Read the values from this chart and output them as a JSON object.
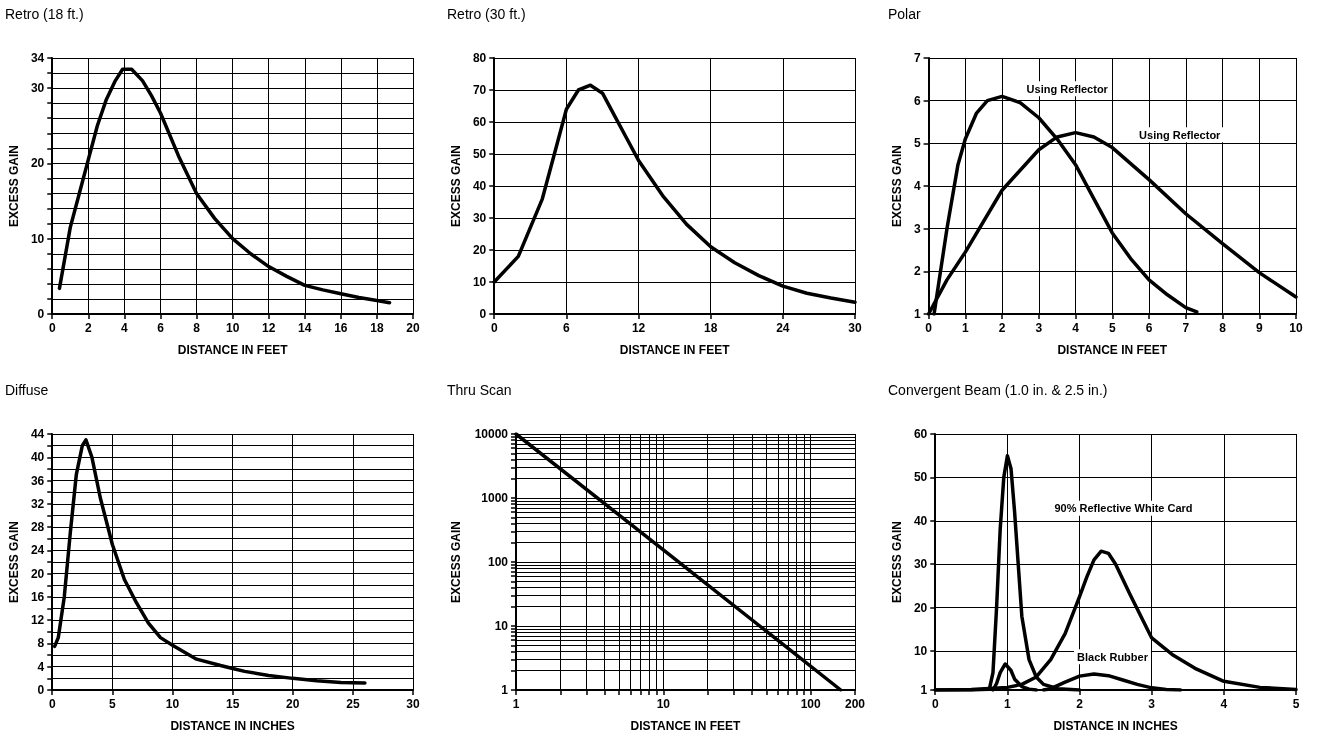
{
  "chart_data": [
    {
      "type": "line",
      "title": "Retro (18 ft.)",
      "xlabel": "DISTANCE IN FEET",
      "ylabel": "EXCESS GAIN",
      "grid": true,
      "marker": "none",
      "line_style": "solid",
      "xlim": [
        0,
        20
      ],
      "xticks": [
        0,
        2,
        4,
        6,
        8,
        10,
        12,
        14,
        16,
        18,
        20
      ],
      "ylim": [
        0,
        34
      ],
      "yticks": [
        0,
        {
          "value": 2,
          "label": null
        },
        {
          "value": 4,
          "label": null
        },
        {
          "value": 6,
          "label": null
        },
        {
          "value": 8,
          "label": null
        },
        10,
        {
          "value": 12,
          "label": null
        },
        {
          "value": 14,
          "label": null
        },
        {
          "value": 16,
          "label": null
        },
        {
          "value": 18,
          "label": null
        },
        20,
        {
          "value": 22,
          "label": null
        },
        {
          "value": 24,
          "label": null
        },
        {
          "value": 26,
          "label": null
        },
        {
          "value": 28,
          "label": null
        },
        30,
        {
          "value": 32,
          "label": null
        },
        34
      ],
      "series": [
        {
          "color": "#000000",
          "x": [
            0.4,
            1,
            1.5,
            2,
            2.5,
            3,
            3.5,
            3.9,
            4.4,
            5,
            5.5,
            6,
            7,
            8,
            9,
            10,
            11,
            12,
            13,
            14,
            15,
            16,
            17,
            18,
            18.7
          ],
          "values": [
            3.4,
            11.5,
            16,
            20.5,
            25,
            28.5,
            31,
            32.5,
            32.5,
            31,
            29,
            26.7,
            21,
            16,
            12.7,
            10,
            8,
            6.3,
            5,
            3.8,
            3.2,
            2.7,
            2.2,
            1.8,
            1.5
          ]
        }
      ]
    },
    {
      "type": "line",
      "title": "Retro (30 ft.)",
      "xlabel": "DISTANCE IN FEET",
      "ylabel": "EXCESS GAIN",
      "grid": true,
      "marker": "none",
      "line_style": "solid",
      "xlim": [
        0,
        30
      ],
      "xticks": [
        0,
        6,
        12,
        18,
        24,
        30
      ],
      "ylim": [
        0,
        80
      ],
      "yticks": [
        0,
        10,
        20,
        30,
        40,
        50,
        60,
        70,
        80
      ],
      "series": [
        {
          "color": "#000000",
          "x": [
            0,
            2,
            4,
            5,
            6,
            7,
            8,
            9,
            10,
            11,
            12,
            14,
            16,
            18,
            20,
            22,
            24,
            26,
            28,
            30
          ],
          "values": [
            10,
            18,
            36,
            50,
            64,
            70,
            71.5,
            69,
            62,
            55,
            48,
            37,
            28,
            21,
            16,
            12,
            8.7,
            6.5,
            5,
            3.7
          ]
        }
      ]
    },
    {
      "type": "line",
      "title": "Polar",
      "xlabel": "DISTANCE IN FEET",
      "ylabel": "EXCESS GAIN",
      "grid": true,
      "marker": "none",
      "line_style": "solid",
      "xlim": [
        0,
        10
      ],
      "xticks": [
        0,
        1,
        2,
        3,
        4,
        5,
        6,
        7,
        8,
        9,
        10
      ],
      "ylim": [
        1,
        7
      ],
      "yticks": [
        1,
        2,
        3,
        4,
        5,
        6,
        7
      ],
      "annotations": [
        "Using Reflector",
        "Using Reflector"
      ],
      "series": [
        {
          "color": "#000000",
          "x": [
            0.15,
            0.5,
            0.8,
            1,
            1.3,
            1.6,
            2,
            2.5,
            3,
            3.5,
            4,
            4.5,
            5,
            5.5,
            6,
            6.5,
            7,
            7.3
          ],
          "values": [
            1,
            3,
            4.5,
            5.1,
            5.7,
            6,
            6.1,
            5.95,
            5.6,
            5.1,
            4.5,
            3.7,
            2.9,
            2.3,
            1.8,
            1.45,
            1.15,
            1.05
          ]
        },
        {
          "color": "#000000",
          "x": [
            0,
            0.5,
            1,
            2,
            3,
            3.5,
            4,
            4.5,
            5,
            6,
            7,
            8,
            9,
            10
          ],
          "values": [
            1,
            1.8,
            2.45,
            3.9,
            4.85,
            5.15,
            5.25,
            5.15,
            4.9,
            4.15,
            3.35,
            2.65,
            1.97,
            1.4
          ]
        }
      ]
    },
    {
      "type": "line",
      "title": "Diffuse",
      "xlabel": "DISTANCE IN INCHES",
      "ylabel": "EXCESS GAIN",
      "grid": true,
      "marker": "none",
      "line_style": "solid",
      "xlim": [
        0,
        30
      ],
      "xticks": [
        0,
        5,
        10,
        15,
        20,
        25,
        30
      ],
      "ylim": [
        0,
        44
      ],
      "yticks": [
        0,
        {
          "value": 2,
          "label": null
        },
        4,
        {
          "value": 6,
          "label": null
        },
        8,
        {
          "value": 10,
          "label": null
        },
        12,
        {
          "value": 14,
          "label": null
        },
        16,
        {
          "value": 18,
          "label": null
        },
        20,
        {
          "value": 22,
          "label": null
        },
        24,
        {
          "value": 26,
          "label": null
        },
        28,
        {
          "value": 30,
          "label": null
        },
        32,
        {
          "value": 34,
          "label": null
        },
        36,
        {
          "value": 38,
          "label": null
        },
        40,
        {
          "value": 42,
          "label": null
        },
        44
      ],
      "series": [
        {
          "color": "#000000",
          "x": [
            0.2,
            0.5,
            1,
            1.5,
            2,
            2.5,
            2.8,
            3.3,
            4,
            5,
            6,
            7,
            8,
            9,
            10,
            12,
            14,
            15,
            16,
            18,
            20,
            22,
            24,
            26
          ],
          "values": [
            7.5,
            9,
            16,
            27,
            37,
            42,
            43,
            40,
            33,
            25,
            19,
            15,
            11.5,
            9,
            7.7,
            5.3,
            4.2,
            3.7,
            3.2,
            2.5,
            2,
            1.6,
            1.3,
            1.2
          ]
        }
      ]
    },
    {
      "type": "line",
      "title": "Thru Scan",
      "xlabel": "DISTANCE IN FEET",
      "ylabel": "EXCESS GAIN",
      "grid": true,
      "marker": "none",
      "line_style": "solid",
      "log": "xy",
      "xlim": [
        1,
        200
      ],
      "xticks": [
        1,
        {
          "value": 2,
          "label": null
        },
        {
          "value": 3,
          "label": null
        },
        {
          "value": 4,
          "label": null
        },
        {
          "value": 5,
          "label": null
        },
        {
          "value": 6,
          "label": null
        },
        {
          "value": 7,
          "label": null
        },
        {
          "value": 8,
          "label": null
        },
        {
          "value": 9,
          "label": null
        },
        10,
        {
          "value": 20,
          "label": null
        },
        {
          "value": 30,
          "label": null
        },
        {
          "value": 40,
          "label": null
        },
        {
          "value": 50,
          "label": null
        },
        {
          "value": 60,
          "label": null
        },
        {
          "value": 70,
          "label": null
        },
        {
          "value": 80,
          "label": null
        },
        {
          "value": 90,
          "label": null
        },
        100,
        200
      ],
      "ylim": [
        1,
        10000
      ],
      "yticks": [
        1,
        {
          "value": 2,
          "label": null
        },
        {
          "value": 3,
          "label": null
        },
        {
          "value": 4,
          "label": null
        },
        {
          "value": 5,
          "label": null
        },
        {
          "value": 6,
          "label": null
        },
        {
          "value": 7,
          "label": null
        },
        {
          "value": 8,
          "label": null
        },
        {
          "value": 9,
          "label": null
        },
        10,
        {
          "value": 20,
          "label": null
        },
        {
          "value": 30,
          "label": null
        },
        {
          "value": 40,
          "label": null
        },
        {
          "value": 50,
          "label": null
        },
        {
          "value": 60,
          "label": null
        },
        {
          "value": 70,
          "label": null
        },
        {
          "value": 80,
          "label": null
        },
        {
          "value": 90,
          "label": null
        },
        100,
        {
          "value": 200,
          "label": null
        },
        {
          "value": 300,
          "label": null
        },
        {
          "value": 400,
          "label": null
        },
        {
          "value": 500,
          "label": null
        },
        {
          "value": 600,
          "label": null
        },
        {
          "value": 700,
          "label": null
        },
        {
          "value": 800,
          "label": null
        },
        {
          "value": 900,
          "label": null
        },
        1000,
        {
          "value": 2000,
          "label": null
        },
        {
          "value": 3000,
          "label": null
        },
        {
          "value": 4000,
          "label": null
        },
        {
          "value": 5000,
          "label": null
        },
        {
          "value": 6000,
          "label": null
        },
        {
          "value": 7000,
          "label": null
        },
        {
          "value": 8000,
          "label": null
        },
        {
          "value": 9000,
          "label": null
        },
        10000
      ],
      "series": [
        {
          "color": "#000000",
          "x": [
            1,
            10,
            160
          ],
          "values": [
            10000,
            155,
            1
          ]
        }
      ]
    },
    {
      "type": "line",
      "title": "Convergent Beam (1.0 in. & 2.5 in.)",
      "xlabel": "DISTANCE IN INCHES",
      "ylabel": "EXCESS GAIN",
      "grid": true,
      "marker": "none",
      "line_style": "solid",
      "xlim": [
        0,
        5
      ],
      "xticks": [
        0,
        1,
        2,
        3,
        4,
        5
      ],
      "ylim": [
        1,
        60
      ],
      "yticks": [
        1,
        10,
        20,
        30,
        40,
        50,
        60
      ],
      "annotations": [
        "90% Reflective White Card",
        "Black Rubber"
      ],
      "series": [
        {
          "color": "#000000",
          "x": [
            0,
            0.5,
            0.75,
            0.8,
            0.85,
            0.9,
            0.95,
            1,
            1.05,
            1.1,
            1.15,
            1.2,
            1.3,
            1.4,
            1.5,
            1.7,
            2
          ],
          "values": [
            1,
            1,
            1.2,
            5,
            20,
            38,
            50,
            55,
            52,
            42,
            30,
            18,
            8,
            4,
            2.3,
            1.3,
            1
          ]
        },
        {
          "color": "#000000",
          "x": [
            0.8,
            0.85,
            0.9,
            0.97,
            1.05,
            1.1,
            1.2,
            1.3,
            1.4
          ],
          "values": [
            1,
            2.5,
            5,
            7,
            5.5,
            3.5,
            1.8,
            1.2,
            1
          ]
        },
        {
          "color": "#000000",
          "x": [
            0,
            0.5,
            1,
            1.2,
            1.4,
            1.6,
            1.8,
            2,
            2.1,
            2.2,
            2.3,
            2.4,
            2.5,
            2.7,
            3,
            3.3,
            3.6,
            4,
            4.5,
            5
          ],
          "values": [
            1,
            1.1,
            1.6,
            2.3,
            4,
            8,
            14,
            22.5,
            27,
            31,
            33,
            32.5,
            30,
            23,
            13,
            9,
            6,
            3,
            1.6,
            1.1
          ]
        },
        {
          "color": "#000000",
          "x": [
            1.5,
            1.6,
            1.8,
            2,
            2.2,
            2.4,
            2.6,
            2.8,
            3,
            3.2,
            3.4
          ],
          "values": [
            1,
            1.3,
            2.8,
            4.2,
            4.7,
            4.3,
            3.3,
            2.3,
            1.5,
            1.1,
            1
          ]
        }
      ]
    }
  ]
}
